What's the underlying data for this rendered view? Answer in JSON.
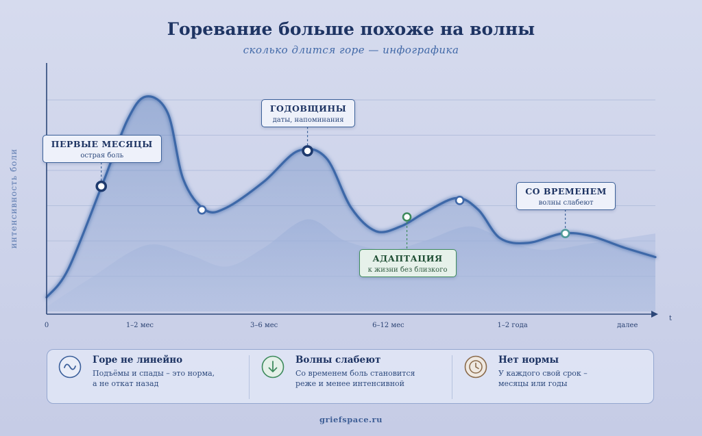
{
  "title": "Горевание больше похоже на волны",
  "subtitle": "сколько длится горе — инфографика",
  "chart_data": {
    "type": "area",
    "xlabel": "t",
    "ylabel": "интенсивность боли",
    "x_ticks": [
      {
        "label": "0",
        "x": 0
      },
      {
        "label": "1–2 мес",
        "x": 1.5
      },
      {
        "label": "3–6 мес",
        "x": 3.5
      },
      {
        "label": "6–12 мес",
        "x": 5.5
      },
      {
        "label": "1–2 года",
        "x": 7.5
      },
      {
        "label": "далее",
        "x": 9.35
      }
    ],
    "xlim": [
      0,
      9.8
    ],
    "ylim": [
      0,
      1
    ],
    "grid": true,
    "series": [
      {
        "points": [
          [
            0,
            0.06
          ],
          [
            0.35,
            0.18
          ],
          [
            0.9,
            0.54
          ],
          [
            1.3,
            0.81
          ],
          [
            1.6,
            0.91
          ],
          [
            1.95,
            0.84
          ],
          [
            2.2,
            0.56
          ],
          [
            2.55,
            0.43
          ],
          [
            2.9,
            0.44
          ],
          [
            3.5,
            0.55
          ],
          [
            4.05,
            0.68
          ],
          [
            4.5,
            0.65
          ],
          [
            4.9,
            0.44
          ],
          [
            5.3,
            0.34
          ],
          [
            5.7,
            0.36
          ],
          [
            6.1,
            0.42
          ],
          [
            6.6,
            0.48
          ],
          [
            6.95,
            0.43
          ],
          [
            7.3,
            0.31
          ],
          [
            7.75,
            0.29
          ],
          [
            8.3,
            0.33
          ],
          [
            8.75,
            0.32
          ],
          [
            9.3,
            0.27
          ],
          [
            9.8,
            0.23
          ]
        ]
      },
      {
        "points": [
          [
            0,
            0.02
          ],
          [
            0.7,
            0.14
          ],
          [
            1.6,
            0.28
          ],
          [
            2.3,
            0.24
          ],
          [
            2.9,
            0.19
          ],
          [
            3.5,
            0.27
          ],
          [
            4.2,
            0.39
          ],
          [
            4.8,
            0.3
          ],
          [
            5.5,
            0.26
          ],
          [
            6.1,
            0.3
          ],
          [
            6.8,
            0.36
          ],
          [
            7.4,
            0.3
          ],
          [
            8.0,
            0.26
          ],
          [
            8.8,
            0.29
          ],
          [
            9.8,
            0.33
          ]
        ]
      }
    ],
    "markers": [
      {
        "x": 0.88,
        "y": 0.53,
        "style": "dark"
      },
      {
        "x": 2.5,
        "y": 0.43,
        "style": "light"
      },
      {
        "x": 4.2,
        "y": 0.68,
        "style": "dark"
      },
      {
        "x": 5.8,
        "y": 0.4,
        "style": "green"
      },
      {
        "x": 6.65,
        "y": 0.47,
        "style": "light"
      },
      {
        "x": 8.35,
        "y": 0.33,
        "style": "teal"
      }
    ],
    "annotations": [
      {
        "title": "ПЕРВЫЕ МЕСЯЦЫ",
        "text": "острая боль",
        "marker": 0,
        "position": "above",
        "style": "blue"
      },
      {
        "title": "ГОДОВЩИНЫ",
        "text": "даты, напоминания",
        "marker": 2,
        "position": "above",
        "style": "blue"
      },
      {
        "title": "АДАПТАЦИЯ",
        "text": "к жизни без близкого",
        "marker": 3,
        "position": "below",
        "style": "green"
      },
      {
        "title": "СО ВРЕМЕНЕМ",
        "text": "волны слабеют",
        "marker": 5,
        "position": "above",
        "style": "blue"
      }
    ]
  },
  "cards": [
    {
      "icon": "wave-icon",
      "title": "Горе не линейно",
      "text": "Подъёмы и спады – это норма,\nа не откат назад",
      "color": "#3b5f9a"
    },
    {
      "icon": "arrow-down-icon",
      "title": "Волны слабеют",
      "text": "Со временем боль становится\nреже и менее интенсивной",
      "color": "#3d8a5c"
    },
    {
      "icon": "clock-icon",
      "title": "Нет нормы",
      "text": "У каждого свой срок –\nмесяцы или годы",
      "color": "#8a6a4a"
    }
  ],
  "footer": "griefspace.ru",
  "colors": {
    "line": "#3e67a8",
    "green": "#3d8a5c",
    "teal": "#4f9a9a",
    "dark": "#1e3a6e"
  }
}
